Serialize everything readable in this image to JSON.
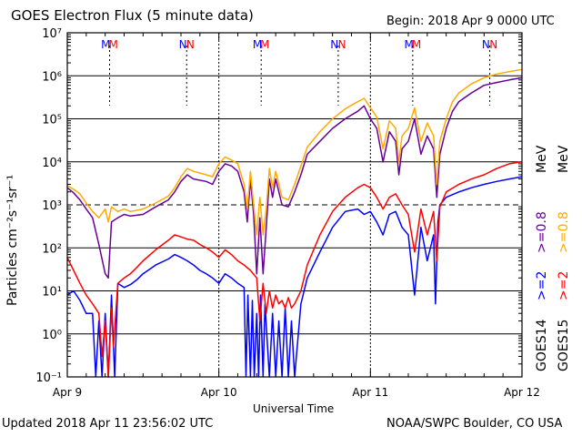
{
  "header": {
    "title": "GOES Electron Flux (5 minute data)",
    "begin": "Begin: 2018 Apr 9 0000 UTC"
  },
  "footer": {
    "updated": "Updated 2018 Apr 11 23:56:02 UTC",
    "credit": "NOAA/SWPC Boulder, CO USA"
  },
  "chart_data": {
    "type": "line",
    "xlabel": "Universal Time",
    "ylabel": "Particles cm⁻²s⁻¹sr⁻¹",
    "yscale": "log",
    "ylim": [
      0.1,
      10000000
    ],
    "xlim_hours": [
      0,
      72
    ],
    "x_ticks": [
      "Apr 9",
      "Apr 10",
      "Apr 11",
      "Apr 12"
    ],
    "y_ticks": [
      "10⁻¹",
      "10⁰",
      "10¹",
      "10²",
      "10³",
      "10⁴",
      "10⁵",
      "10⁶",
      "10⁷"
    ],
    "threshold_line": 1000,
    "markers": [
      {
        "label": "M",
        "color": "#0000ff",
        "hour": 6.1
      },
      {
        "label": "M",
        "color": "#ff0000",
        "hour": 7.3
      },
      {
        "label": "N",
        "color": "#0000ff",
        "hour": 18.3
      },
      {
        "label": "N",
        "color": "#ff0000",
        "hour": 19.5
      },
      {
        "label": "M",
        "color": "#0000ff",
        "hour": 30.1
      },
      {
        "label": "M",
        "color": "#ff0000",
        "hour": 31.3
      },
      {
        "label": "N",
        "color": "#0000ff",
        "hour": 42.3
      },
      {
        "label": "N",
        "color": "#ff0000",
        "hour": 43.5
      },
      {
        "label": "M",
        "color": "#0000ff",
        "hour": 54.1
      },
      {
        "label": "M",
        "color": "#ff0000",
        "hour": 55.3
      },
      {
        "label": "N",
        "color": "#0000ff",
        "hour": 66.3
      },
      {
        "label": "N",
        "color": "#ff0000",
        "hour": 67.5
      }
    ],
    "dotted_lines_hours": [
      6.7,
      18.9,
      30.7,
      42.9,
      54.7,
      66.9
    ],
    "legend": {
      "goes14": "GOES14",
      "goes15": "GOES15",
      "g14_gt2": ">=2",
      "g14_gt08": ">=0.8",
      "g15_gt2": ">=2",
      "g15_gt08": ">=0.8",
      "mev": "MeV"
    },
    "series": [
      {
        "name": "GOES14 >=0.8 MeV",
        "color": "#660099",
        "x": [
          0,
          1,
          2,
          3,
          4,
          5,
          6,
          6.5,
          7,
          8,
          9,
          10,
          12,
          14,
          16,
          17,
          18,
          19,
          20,
          22,
          23,
          24,
          25,
          26,
          27,
          28,
          28.5,
          29,
          29.5,
          30,
          30.5,
          31,
          31.5,
          32,
          32.5,
          33,
          34,
          35,
          36,
          37,
          38,
          40,
          42,
          44,
          46,
          47,
          48,
          49,
          50,
          51,
          52,
          52.5,
          53,
          54,
          55,
          56,
          57,
          58,
          58.5,
          59,
          60,
          61,
          62,
          64,
          66,
          68,
          70,
          72
        ],
        "y": [
          2500,
          1900,
          1300,
          800,
          500,
          120,
          25,
          20,
          400,
          500,
          600,
          550,
          600,
          900,
          1300,
          2000,
          3500,
          5000,
          4000,
          3500,
          3000,
          6000,
          9000,
          8000,
          6000,
          2000,
          400,
          4000,
          600,
          25,
          500,
          25,
          300,
          4000,
          1500,
          4000,
          1000,
          900,
          2000,
          5000,
          15000,
          30000,
          60000,
          100000,
          150000,
          200000,
          100000,
          60000,
          10000,
          50000,
          30000,
          5000,
          20000,
          30000,
          100000,
          15000,
          40000,
          20000,
          1500,
          15000,
          60000,
          150000,
          250000,
          400000,
          600000,
          700000,
          800000,
          900000
        ]
      },
      {
        "name": "GOES15 >=0.8 MeV",
        "color": "#ffaa00",
        "x": [
          0,
          1,
          2,
          3,
          4,
          5,
          6,
          6.5,
          7,
          8,
          9,
          10,
          12,
          14,
          16,
          17,
          18,
          19,
          20,
          22,
          23,
          24,
          25,
          26,
          27,
          28,
          28.5,
          29,
          29.5,
          30,
          30.5,
          31,
          31.5,
          32,
          32.5,
          33,
          34,
          35,
          36,
          37,
          38,
          40,
          42,
          44,
          46,
          47,
          48,
          49,
          50,
          51,
          52,
          52.5,
          53,
          54,
          55,
          56,
          57,
          58,
          58.5,
          59,
          60,
          61,
          62,
          64,
          66,
          68,
          70,
          72
        ],
        "y": [
          2800,
          2300,
          1800,
          1100,
          700,
          500,
          800,
          400,
          900,
          700,
          800,
          700,
          800,
          1100,
          1600,
          2500,
          4500,
          7000,
          6000,
          5000,
          4500,
          9000,
          13000,
          11000,
          9000,
          3000,
          800,
          6000,
          1000,
          200,
          1500,
          200,
          800,
          7000,
          2500,
          6000,
          1500,
          1300,
          3000,
          8000,
          22000,
          50000,
          100000,
          170000,
          250000,
          300000,
          180000,
          110000,
          20000,
          90000,
          60000,
          10000,
          40000,
          60000,
          180000,
          30000,
          80000,
          40000,
          3000,
          30000,
          100000,
          250000,
          400000,
          650000,
          900000,
          1100000,
          1250000,
          1400000
        ]
      },
      {
        "name": "GOES14 >=2 MeV",
        "color": "#0000ff",
        "x": [
          0,
          1,
          2,
          3,
          4,
          4.5,
          5,
          5.5,
          6,
          6.5,
          7,
          7.5,
          8,
          9,
          10,
          11,
          12,
          14,
          16,
          17,
          18,
          19,
          20,
          21,
          22,
          23,
          24,
          25,
          26,
          27,
          28,
          28.3,
          28.6,
          29,
          29.3,
          29.6,
          30,
          30.3,
          30.6,
          31,
          31.3,
          32,
          32.5,
          33,
          33.5,
          34,
          34.5,
          35,
          35.5,
          36,
          37,
          38,
          40,
          42,
          44,
          46,
          47,
          48,
          49,
          50,
          51,
          52,
          53,
          54,
          55,
          56,
          57,
          58,
          58.3,
          58.7,
          59,
          60,
          62,
          64,
          66,
          68,
          70,
          72
        ],
        "y": [
          8,
          10,
          6,
          3,
          3,
          0.1,
          2,
          0.1,
          3,
          0.1,
          8,
          0.1,
          15,
          12,
          14,
          18,
          25,
          40,
          55,
          70,
          60,
          50,
          40,
          30,
          25,
          20,
          15,
          25,
          20,
          15,
          12,
          0.1,
          8,
          0.1,
          6,
          0.1,
          3,
          0.1,
          8,
          0.1,
          5,
          0.1,
          3,
          0.1,
          2,
          0.1,
          4,
          0.1,
          2,
          0.1,
          5,
          20,
          80,
          300,
          700,
          800,
          600,
          700,
          400,
          200,
          600,
          700,
          300,
          200,
          8,
          300,
          50,
          200,
          5,
          400,
          1000,
          1500,
          2000,
          2500,
          3000,
          3500,
          4000,
          4500
        ]
      },
      {
        "name": "GOES15 >=2 MeV",
        "color": "#ff0000",
        "x": [
          0,
          1,
          2,
          3,
          4,
          5,
          5.5,
          6,
          6.5,
          7,
          7.3,
          8,
          9,
          10,
          11,
          12,
          14,
          16,
          17,
          18,
          19,
          20,
          21,
          22,
          23,
          24,
          25,
          26,
          27,
          28,
          29,
          30,
          30.5,
          31,
          31.5,
          32,
          32.5,
          33,
          33.5,
          34,
          34.5,
          35,
          35.5,
          36,
          37,
          38,
          40,
          42,
          44,
          46,
          47,
          48,
          49,
          50,
          51,
          52,
          53,
          54,
          55,
          56,
          57,
          58,
          58.5,
          59,
          60,
          62,
          64,
          66,
          68,
          70,
          72
        ],
        "y": [
          60,
          30,
          15,
          8,
          5,
          3,
          0.3,
          2,
          0.1,
          4,
          0.5,
          15,
          20,
          25,
          35,
          50,
          90,
          150,
          200,
          180,
          160,
          150,
          120,
          100,
          80,
          60,
          90,
          70,
          50,
          40,
          30,
          20,
          2,
          15,
          3,
          10,
          4,
          8,
          5,
          6,
          4,
          7,
          4,
          5,
          10,
          40,
          200,
          700,
          1500,
          2500,
          3000,
          2500,
          1500,
          800,
          1500,
          1800,
          1000,
          600,
          80,
          800,
          200,
          700,
          50,
          900,
          2000,
          3000,
          4000,
          5000,
          7000,
          9000,
          10000
        ]
      }
    ]
  }
}
